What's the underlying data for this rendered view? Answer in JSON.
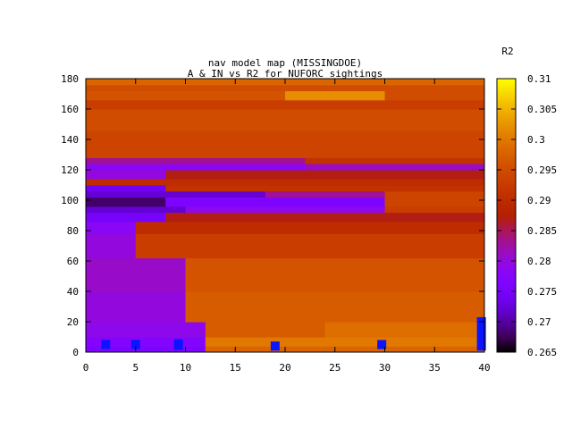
{
  "chart_data": {
    "type": "heatmap",
    "title": "nav model map (MISSINGDOE)",
    "subtitle": "A & IN vs R2 for NUFORC sightings",
    "xlabel": "",
    "ylabel": "",
    "xlim": [
      0,
      40
    ],
    "ylim": [
      0,
      180
    ],
    "x_ticks": [
      0,
      5,
      10,
      15,
      20,
      25,
      30,
      35,
      40
    ],
    "y_ticks": [
      0,
      20,
      40,
      60,
      80,
      100,
      120,
      140,
      160,
      180
    ],
    "colorbar": {
      "label": "R2",
      "range": [
        0.265,
        0.31
      ],
      "ticks": [
        0.265,
        0.27,
        0.275,
        0.28,
        0.285,
        0.29,
        0.295,
        0.3,
        0.305,
        0.31
      ],
      "colormap": "gnuplot-default",
      "colors": [
        "#000000",
        "#7f00ff",
        "#c8006e",
        "#ff6400",
        "#ffff00"
      ]
    },
    "points": [
      {
        "x": 2,
        "y": 5,
        "height": 6
      },
      {
        "x": 5,
        "y": 5,
        "height": 6
      },
      {
        "x": 9.3,
        "y": 5,
        "height": 7
      },
      {
        "x": 19,
        "y": 4,
        "height": 6
      },
      {
        "x": 29.7,
        "y": 5,
        "height": 6
      },
      {
        "x": 39.7,
        "y": 12,
        "height": 22
      }
    ],
    "marker_color": "#0a14ff",
    "bands": [
      {
        "y": [
          0,
          4
        ],
        "segments": [
          [
            0,
            12,
            0.276
          ],
          [
            12,
            40,
            0.298
          ]
        ]
      },
      {
        "y": [
          4,
          10
        ],
        "segments": [
          [
            0,
            12,
            0.277
          ],
          [
            12,
            40,
            0.3
          ]
        ]
      },
      {
        "y": [
          10,
          20
        ],
        "segments": [
          [
            0,
            12,
            0.279
          ],
          [
            12,
            24,
            0.297
          ],
          [
            24,
            40,
            0.299
          ]
        ]
      },
      {
        "y": [
          20,
          40
        ],
        "segments": [
          [
            0,
            10,
            0.28
          ],
          [
            10,
            40,
            0.297
          ]
        ]
      },
      {
        "y": [
          40,
          62
        ],
        "segments": [
          [
            0,
            10,
            0.281
          ],
          [
            10,
            40,
            0.296
          ]
        ]
      },
      {
        "y": [
          62,
          78
        ],
        "segments": [
          [
            0,
            5,
            0.28
          ],
          [
            5,
            40,
            0.293
          ]
        ]
      },
      {
        "y": [
          78,
          86
        ],
        "segments": [
          [
            0,
            5,
            0.278
          ],
          [
            5,
            40,
            0.29
          ]
        ]
      },
      {
        "y": [
          86,
          92
        ],
        "segments": [
          [
            0,
            8,
            0.275
          ],
          [
            8,
            40,
            0.287
          ]
        ]
      },
      {
        "y": [
          92,
          96
        ],
        "segments": [
          [
            0,
            10,
            0.272
          ],
          [
            10,
            30,
            0.279
          ],
          [
            30,
            40,
            0.293
          ]
        ]
      },
      {
        "y": [
          96,
          102
        ],
        "segments": [
          [
            0,
            8,
            0.268
          ],
          [
            8,
            30,
            0.276
          ],
          [
            30,
            40,
            0.294
          ]
        ]
      },
      {
        "y": [
          102,
          106
        ],
        "segments": [
          [
            0,
            18,
            0.272
          ],
          [
            18,
            30,
            0.283
          ],
          [
            30,
            40,
            0.294
          ]
        ]
      },
      {
        "y": [
          106,
          110
        ],
        "segments": [
          [
            0,
            8,
            0.274
          ],
          [
            8,
            40,
            0.291
          ]
        ]
      },
      {
        "y": [
          110,
          114
        ],
        "segments": [
          [
            0,
            40,
            0.29
          ]
        ]
      },
      {
        "y": [
          114,
          120
        ],
        "segments": [
          [
            0,
            8,
            0.28
          ],
          [
            8,
            40,
            0.287
          ]
        ]
      },
      {
        "y": [
          120,
          124
        ],
        "segments": [
          [
            0,
            22,
            0.278
          ],
          [
            22,
            40,
            0.281
          ]
        ]
      },
      {
        "y": [
          124,
          128
        ],
        "segments": [
          [
            0,
            22,
            0.283
          ],
          [
            22,
            40,
            0.291
          ]
        ]
      },
      {
        "y": [
          128,
          146
        ],
        "segments": [
          [
            0,
            40,
            0.294
          ]
        ]
      },
      {
        "y": [
          146,
          160
        ],
        "segments": [
          [
            0,
            40,
            0.295
          ]
        ]
      },
      {
        "y": [
          160,
          166
        ],
        "segments": [
          [
            0,
            40,
            0.293
          ]
        ]
      },
      {
        "y": [
          166,
          172
        ],
        "segments": [
          [
            0,
            20,
            0.296
          ],
          [
            20,
            30,
            0.302
          ],
          [
            30,
            40,
            0.295
          ]
        ]
      },
      {
        "y": [
          172,
          176
        ],
        "segments": [
          [
            0,
            40,
            0.295
          ]
        ]
      },
      {
        "y": [
          176,
          180
        ],
        "segments": [
          [
            0,
            40,
            0.298
          ]
        ]
      }
    ]
  }
}
